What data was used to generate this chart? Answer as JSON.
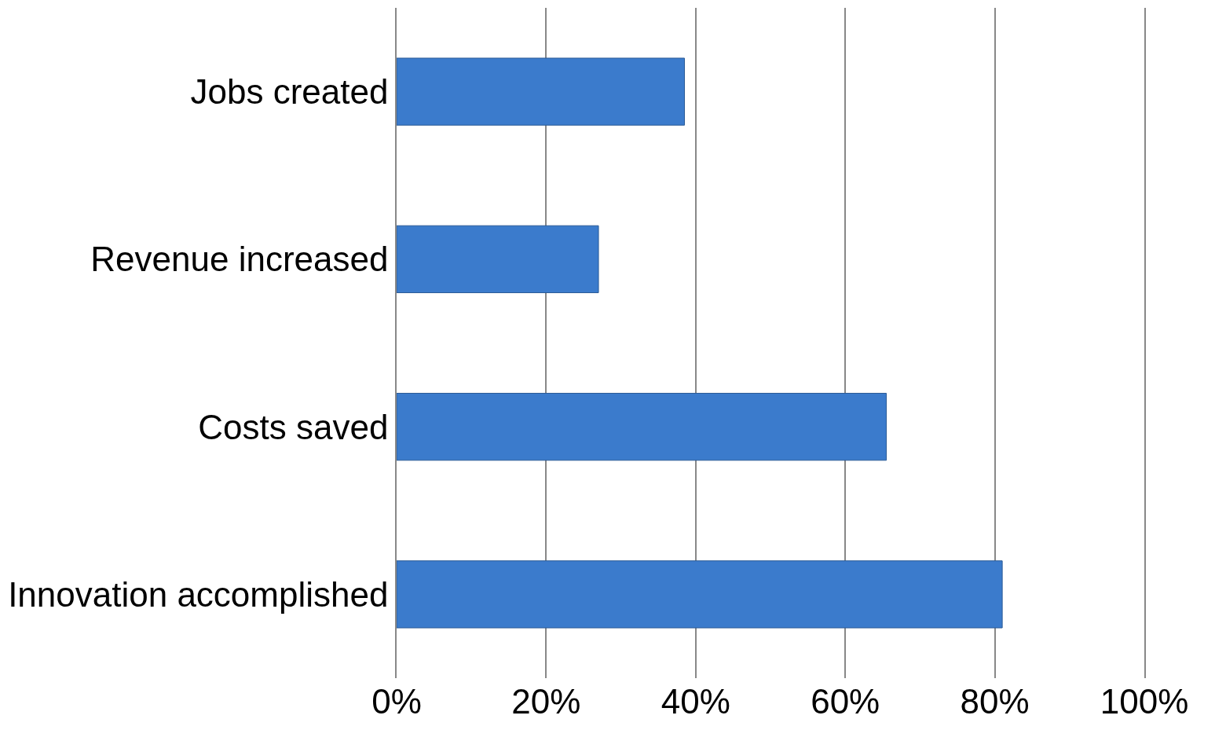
{
  "chart_data": {
    "type": "bar",
    "orientation": "horizontal",
    "categories": [
      "Jobs created",
      "Revenue increased",
      "Costs saved",
      "Innovation accomplished"
    ],
    "values": [
      38.5,
      27,
      65.5,
      81
    ],
    "color": "#3b7bcc",
    "xlim": [
      0,
      100
    ],
    "xticks": [
      {
        "value": 0,
        "label": "0%"
      },
      {
        "value": 20,
        "label": "20%"
      },
      {
        "value": 40,
        "label": "40%"
      },
      {
        "value": 60,
        "label": "60%"
      },
      {
        "value": 80,
        "label": "80%"
      },
      {
        "value": 100,
        "label": "100%"
      }
    ],
    "grid": "x"
  }
}
